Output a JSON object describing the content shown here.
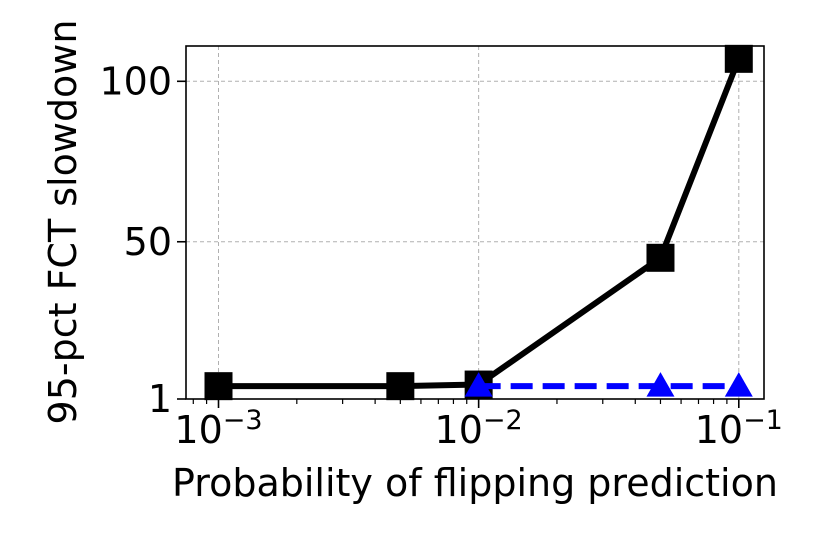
{
  "chart_data": {
    "type": "line",
    "xlabel": "Probability of flipping prediction",
    "ylabel": "95-pct FCT slowdown",
    "x_scale": "log",
    "xlim": [
      0.00075,
      0.125
    ],
    "ylim": [
      1,
      111
    ],
    "grid": true,
    "x_ticks": [
      {
        "value": 0.001,
        "base": "10",
        "exp": "−3"
      },
      {
        "value": 0.01,
        "base": "10",
        "exp": "−2"
      },
      {
        "value": 0.1,
        "base": "10",
        "exp": "−1"
      }
    ],
    "y_ticks": [
      {
        "value": 1,
        "label": "1"
      },
      {
        "value": 50,
        "label": "50"
      },
      {
        "value": 100,
        "label": "100"
      }
    ],
    "series": [
      {
        "color": "#000000",
        "line_style": "solid",
        "marker": "square",
        "points": [
          {
            "x": 0.001,
            "y": 5
          },
          {
            "x": 0.005,
            "y": 5
          },
          {
            "x": 0.01,
            "y": 5.5
          },
          {
            "x": 0.05,
            "y": 45
          },
          {
            "x": 0.1,
            "y": 107
          }
        ]
      },
      {
        "color": "#0000ff",
        "line_style": "dashed",
        "marker": "triangle",
        "points": [
          {
            "x": 0.01,
            "y": 5
          },
          {
            "x": 0.05,
            "y": 5
          },
          {
            "x": 0.1,
            "y": 5
          }
        ]
      }
    ]
  }
}
